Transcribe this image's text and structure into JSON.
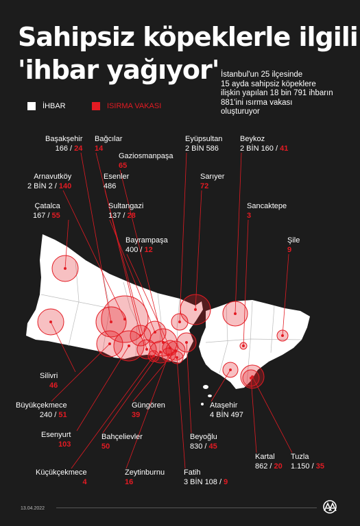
{
  "title": [
    "Sahipsiz köpeklerle ilgili",
    "'ihbar yağıyor'"
  ],
  "subtitle": [
    "İstanbul'un 25 ilçesinde",
    "15 ayda sahipsiz köpeklere",
    "ilişkin yapılan 18 bin 791 ihbarın",
    "881'ini ısırma vakası",
    "oluşturuyor"
  ],
  "legend": {
    "ihbar": "İHBAR",
    "isirma": "ISIRMA VAKASI"
  },
  "colors": {
    "background": "#1c1c1c",
    "land": "#ffffff",
    "bite": "#e31b23"
  },
  "districts": [
    {
      "name": "Başakşehir",
      "ihbar": "166",
      "isirma": "24"
    },
    {
      "name": "Bağcılar",
      "ihbar": "",
      "isirma": "14"
    },
    {
      "name": "Eyüpsultan",
      "ihbar": "2 BİN 586",
      "isirma": ""
    },
    {
      "name": "Beykoz",
      "ihbar": "2 BİN 160",
      "isirma": "41"
    },
    {
      "name": "Gaziosmanpaşa",
      "ihbar": "",
      "isirma": "65"
    },
    {
      "name": "Arnavutköy",
      "ihbar": "2 BİN 2",
      "isirma": "140"
    },
    {
      "name": "Esenler",
      "ihbar": "486",
      "isirma": ""
    },
    {
      "name": "Sarıyer",
      "ihbar": "",
      "isirma": "72"
    },
    {
      "name": "Çatalca",
      "ihbar": "167",
      "isirma": "55"
    },
    {
      "name": "Sultangazi",
      "ihbar": "137",
      "isirma": "28"
    },
    {
      "name": "Sancaktepe",
      "ihbar": "",
      "isirma": "3"
    },
    {
      "name": "Bayrampaşa",
      "ihbar": "400",
      "isirma": "12"
    },
    {
      "name": "Şile",
      "ihbar": "",
      "isirma": "9"
    },
    {
      "name": "Silivri",
      "ihbar": "",
      "isirma": "46"
    },
    {
      "name": "Büyükçekmece",
      "ihbar": "240",
      "isirma": "51"
    },
    {
      "name": "Güngören",
      "ihbar": "",
      "isirma": "39"
    },
    {
      "name": "Ataşehir",
      "ihbar": "4 BİN 497",
      "isirma": ""
    },
    {
      "name": "Esenyurt",
      "ihbar": "",
      "isirma": "103"
    },
    {
      "name": "Bahçelievler",
      "ihbar": "",
      "isirma": "50"
    },
    {
      "name": "Beyoğlu",
      "ihbar": "830",
      "isirma": "45"
    },
    {
      "name": "Kartal",
      "ihbar": "862",
      "isirma": "20"
    },
    {
      "name": "Tuzla",
      "ihbar": "1.150",
      "isirma": "35"
    },
    {
      "name": "Küçükçekmece",
      "ihbar": "",
      "isirma": "4"
    },
    {
      "name": "Zeytinburnu",
      "ihbar": "",
      "isirma": "16"
    },
    {
      "name": "Fatih",
      "ihbar": "3 BİN 108",
      "isirma": "9"
    }
  ],
  "date": "13.04.2022",
  "logo": "AA"
}
